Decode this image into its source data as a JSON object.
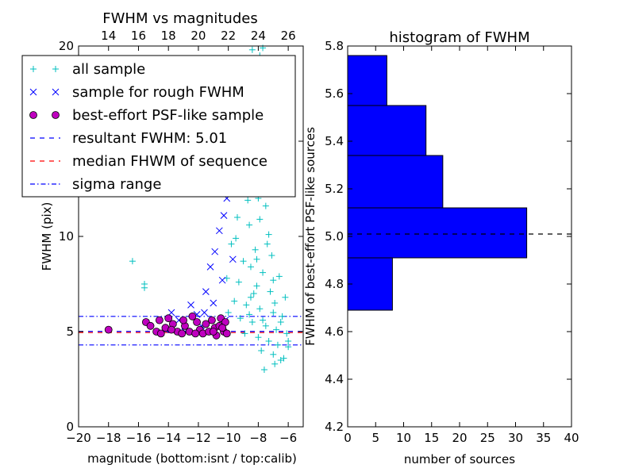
{
  "chart_data": [
    {
      "type": "scatter",
      "title": "FWHM vs magnitudes",
      "xlabel": "magnitude (bottom:isnt / top:calib)",
      "ylabel": "FWHM (pix)",
      "xlim": [
        -20,
        -5
      ],
      "ylim": [
        0,
        20
      ],
      "x_ticks": [
        "−20",
        "−18",
        "−16",
        "−14",
        "−12",
        "−10",
        "−8",
        "−6"
      ],
      "y_ticks": [
        "0",
        "5",
        "10",
        "15",
        "20"
      ],
      "top_axis": {
        "ticks": [
          "14",
          "16",
          "18",
          "20",
          "22",
          "24",
          "26"
        ],
        "offset": 32
      },
      "legend": {
        "position": "top-left",
        "entries": [
          {
            "label": "all sample",
            "marker": "plus",
            "color": "#00bfbf"
          },
          {
            "label": "sample for rough FWHM",
            "marker": "cross",
            "color": "#0000ff"
          },
          {
            "label": "best-effort PSF-like sample",
            "marker": "circle",
            "color": "#bf00bf"
          },
          {
            "label": "resultant FWHM: 5.01",
            "marker": "dash",
            "color": "#0000ff"
          },
          {
            "label": "median FHWM of sequence",
            "marker": "dash",
            "color": "#ff0000"
          },
          {
            "label": "sigma range",
            "marker": "dashdot",
            "color": "#0000ff"
          }
        ]
      },
      "hlines": [
        {
          "y": 5.01,
          "style": "dash",
          "color": "#0000ff"
        },
        {
          "y": 4.95,
          "style": "dash",
          "color": "#ff0000"
        },
        {
          "y": 5.8,
          "style": "dashdot",
          "color": "#0000ff"
        },
        {
          "y": 4.3,
          "style": "dashdot",
          "color": "#0000ff"
        }
      ],
      "series": [
        {
          "marker": "plus",
          "color": "#00bfbf",
          "points": [
            [
              -16.4,
              8.7
            ],
            [
              -15.6,
              7.5
            ],
            [
              -15.6,
              7.3
            ],
            [
              -8.4,
              19.8
            ],
            [
              -7.7,
              19.9
            ],
            [
              -7.9,
              19.5
            ],
            [
              -8.7,
              19.2
            ],
            [
              -8.2,
              18.0
            ],
            [
              -7.4,
              17.0
            ],
            [
              -8.5,
              16.5
            ],
            [
              -7.8,
              15.3
            ],
            [
              -8.3,
              14.8
            ],
            [
              -7.6,
              13.9
            ],
            [
              -8.8,
              13.2
            ],
            [
              -9.1,
              12.4
            ],
            [
              -8.0,
              12.0
            ],
            [
              -7.5,
              11.6
            ],
            [
              -9.4,
              11.0
            ],
            [
              -8.6,
              10.6
            ],
            [
              -7.3,
              10.1
            ],
            [
              -9.8,
              9.6
            ],
            [
              -8.2,
              9.3
            ],
            [
              -7.1,
              9.0
            ],
            [
              -9.0,
              8.7
            ],
            [
              -8.5,
              8.4
            ],
            [
              -7.7,
              8.1
            ],
            [
              -6.6,
              7.9
            ],
            [
              -9.3,
              7.6
            ],
            [
              -8.1,
              7.4
            ],
            [
              -7.2,
              7.1
            ],
            [
              -6.2,
              6.8
            ],
            [
              -9.6,
              6.6
            ],
            [
              -8.8,
              6.4
            ],
            [
              -7.9,
              6.2
            ],
            [
              -7.0,
              6.0
            ],
            [
              -6.4,
              5.8
            ],
            [
              -9.2,
              5.7
            ],
            [
              -8.4,
              5.5
            ],
            [
              -7.5,
              5.3
            ],
            [
              -6.8,
              5.1
            ],
            [
              -6.1,
              4.9
            ],
            [
              -8.9,
              4.9
            ],
            [
              -8.0,
              4.7
            ],
            [
              -7.3,
              4.5
            ],
            [
              -6.7,
              4.3
            ],
            [
              -6.0,
              4.2
            ],
            [
              -7.8,
              4.0
            ],
            [
              -7.0,
              3.8
            ],
            [
              -6.5,
              3.5
            ],
            [
              -6.9,
              3.3
            ],
            [
              -7.6,
              3.0
            ],
            [
              -6.3,
              3.6
            ],
            [
              -10.1,
              7.8
            ],
            [
              -10.0,
              6.0
            ],
            [
              -11.2,
              13.5
            ],
            [
              -10.6,
              14.5
            ],
            [
              -9.9,
              15.8
            ],
            [
              -8.9,
              17.5
            ],
            [
              -7.2,
              12.8
            ],
            [
              -8.7,
              11.9
            ],
            [
              -7.9,
              10.9
            ],
            [
              -7.0,
              7.7
            ],
            [
              -6.9,
              6.5
            ],
            [
              -8.6,
              5.9
            ],
            [
              -8.3,
              7.0
            ],
            [
              -7.4,
              9.6
            ],
            [
              -8.1,
              8.8
            ],
            [
              -9.5,
              9.9
            ],
            [
              -6.5,
              5.5
            ],
            [
              -6.0,
              4.5
            ],
            [
              -7.7,
              5.6
            ],
            [
              -8.5,
              6.8
            ]
          ]
        },
        {
          "marker": "cross",
          "color": "#0000ff",
          "points": [
            [
              -14.2,
              5.1
            ],
            [
              -13.8,
              6.0
            ],
            [
              -13.3,
              5.6
            ],
            [
              -12.9,
              5.0
            ],
            [
              -12.5,
              6.4
            ],
            [
              -12.1,
              5.9
            ],
            [
              -11.8,
              5.3
            ],
            [
              -11.5,
              7.1
            ],
            [
              -11.2,
              8.4
            ],
            [
              -10.9,
              9.2
            ],
            [
              -10.6,
              10.3
            ],
            [
              -10.3,
              11.1
            ],
            [
              -10.1,
              12.0
            ],
            [
              -9.8,
              13.4
            ],
            [
              -9.6,
              14.6
            ],
            [
              -11.3,
              14.9
            ],
            [
              -10.5,
              16.2
            ],
            [
              -10.0,
              18.0
            ],
            [
              -9.5,
              15.5
            ],
            [
              -10.8,
              12.7
            ],
            [
              -11.0,
              6.5
            ],
            [
              -10.4,
              7.7
            ],
            [
              -9.7,
              8.8
            ],
            [
              -10.2,
              5.6
            ],
            [
              -11.6,
              6.0
            ]
          ]
        },
        {
          "marker": "circle",
          "color": "#bf00bf",
          "points": [
            [
              -18.0,
              5.1
            ],
            [
              -15.5,
              5.5
            ],
            [
              -15.2,
              5.3
            ],
            [
              -14.8,
              5.0
            ],
            [
              -14.5,
              4.9
            ],
            [
              -14.2,
              5.2
            ],
            [
              -14.0,
              5.7
            ],
            [
              -13.7,
              5.4
            ],
            [
              -13.4,
              5.0
            ],
            [
              -13.1,
              4.9
            ],
            [
              -12.9,
              5.3
            ],
            [
              -12.6,
              5.0
            ],
            [
              -12.4,
              5.8
            ],
            [
              -12.1,
              5.5
            ],
            [
              -11.9,
              5.1
            ],
            [
              -11.7,
              4.9
            ],
            [
              -11.5,
              5.4
            ],
            [
              -11.3,
              5.0
            ],
            [
              -11.1,
              5.6
            ],
            [
              -10.9,
              5.2
            ],
            [
              -10.8,
              4.8
            ],
            [
              -10.6,
              5.3
            ],
            [
              -10.5,
              5.7
            ],
            [
              -10.3,
              5.0
            ],
            [
              -10.2,
              5.5
            ],
            [
              -10.1,
              4.9
            ],
            [
              -13.0,
              5.6
            ],
            [
              -12.2,
              4.9
            ],
            [
              -11.0,
              5.0
            ],
            [
              -10.4,
              5.2
            ],
            [
              -14.6,
              5.6
            ],
            [
              -13.8,
              5.1
            ]
          ]
        }
      ]
    },
    {
      "type": "bar",
      "orientation": "horizontal",
      "title": "histogram of FWHM",
      "xlabel": "number of sources",
      "ylabel": "FWHM of best-effort PSF-like sources",
      "xlim": [
        0,
        40
      ],
      "ylim": [
        4.2,
        5.8
      ],
      "x_ticks": [
        "0",
        "5",
        "10",
        "15",
        "20",
        "25",
        "30",
        "35",
        "40"
      ],
      "y_ticks": [
        "4.2",
        "4.4",
        "4.6",
        "4.8",
        "5.0",
        "5.2",
        "5.4",
        "5.6",
        "5.8"
      ],
      "color": "#0000ff",
      "bins": [
        {
          "y0": 4.69,
          "y1": 4.91,
          "count": 8
        },
        {
          "y0": 4.91,
          "y1": 5.12,
          "count": 32
        },
        {
          "y0": 5.12,
          "y1": 5.34,
          "count": 17
        },
        {
          "y0": 5.34,
          "y1": 5.55,
          "count": 14
        },
        {
          "y0": 5.55,
          "y1": 5.76,
          "count": 7
        }
      ],
      "hline": {
        "y": 5.01,
        "style": "dash",
        "color": "#000000"
      }
    }
  ]
}
